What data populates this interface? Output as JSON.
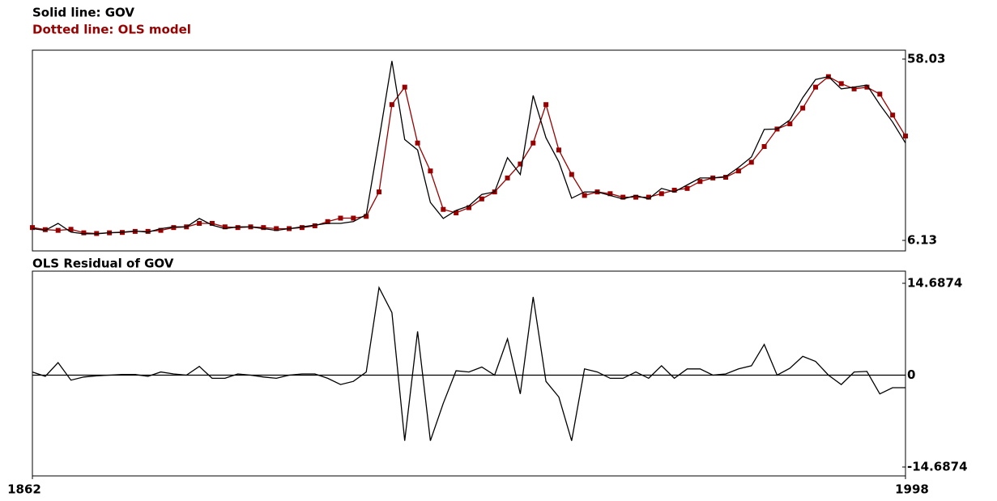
{
  "chart_data": [
    {
      "type": "line",
      "x": [
        1862,
        1864,
        1866,
        1868,
        1870,
        1872,
        1874,
        1876,
        1878,
        1880,
        1882,
        1884,
        1886,
        1888,
        1890,
        1892,
        1894,
        1896,
        1898,
        1900,
        1902,
        1904,
        1906,
        1908,
        1910,
        1912,
        1914,
        1916,
        1918,
        1920,
        1922,
        1924,
        1926,
        1928,
        1930,
        1932,
        1934,
        1936,
        1938,
        1940,
        1942,
        1944,
        1946,
        1948,
        1950,
        1952,
        1954,
        1956,
        1958,
        1960,
        1962,
        1964,
        1966,
        1968,
        1970,
        1972,
        1974,
        1976,
        1978,
        1980,
        1982,
        1984,
        1986,
        1988,
        1990,
        1992,
        1994,
        1996,
        1998
      ],
      "xlim": [
        1862,
        1998
      ],
      "ylim": [
        6.13,
        58.03
      ],
      "yticks": [
        58.03,
        6.13
      ],
      "series": [
        {
          "name": "Solid line: GOV",
          "color": "#000000",
          "values": [
            9.5,
            9.0,
            11.0,
            8.5,
            8.0,
            8.0,
            8.3,
            8.5,
            8.8,
            8.5,
            9.5,
            10.0,
            10.0,
            12.4,
            10.5,
            9.5,
            10.0,
            10.0,
            9.5,
            9.0,
            9.5,
            10.0,
            10.5,
            11.0,
            11.0,
            11.5,
            13.5,
            35.0,
            57.5,
            35.0,
            32.0,
            17.0,
            12.4,
            14.7,
            16.0,
            19.3,
            20.0,
            29.8,
            25.0,
            47.6,
            35.5,
            28.6,
            18.2,
            20.0,
            20.0,
            19.0,
            18.0,
            19.0,
            18.0,
            21.0,
            20.0,
            22.0,
            24.0,
            24.0,
            24.4,
            27.0,
            30.0,
            37.9,
            38.0,
            40.6,
            47.0,
            52.2,
            53.0,
            49.5,
            50.0,
            50.6,
            45.0,
            40.0,
            34.0
          ]
        },
        {
          "name": "Dotted line: OLS model",
          "color": "#990000",
          "marker": "square",
          "values": [
            9.8,
            9.2,
            9.0,
            9.3,
            8.3,
            8.1,
            8.3,
            8.4,
            8.7,
            8.7,
            9.0,
            9.8,
            10.0,
            11.0,
            11.0,
            10.0,
            9.8,
            10.0,
            9.8,
            9.5,
            9.5,
            9.8,
            10.3,
            11.5,
            12.5,
            12.5,
            13.0,
            20.0,
            45.0,
            50.0,
            34.0,
            26.0,
            15.0,
            14.0,
            15.5,
            18.0,
            20.0,
            24.0,
            28.0,
            34.0,
            45.0,
            32.0,
            25.0,
            19.0,
            20.0,
            19.5,
            18.5,
            18.5,
            18.5,
            19.5,
            20.5,
            21.0,
            23.0,
            24.0,
            24.2,
            26.0,
            28.5,
            33.0,
            38.0,
            39.5,
            44.0,
            50.0,
            53.0,
            51.0,
            49.5,
            50.0,
            48.0,
            42.0,
            36.0
          ]
        }
      ]
    },
    {
      "type": "line",
      "title": "OLS Residual of GOV",
      "x": [
        1862,
        1864,
        1866,
        1868,
        1870,
        1872,
        1874,
        1876,
        1878,
        1880,
        1882,
        1884,
        1886,
        1888,
        1890,
        1892,
        1894,
        1896,
        1898,
        1900,
        1902,
        1904,
        1906,
        1908,
        1910,
        1912,
        1914,
        1916,
        1918,
        1920,
        1922,
        1924,
        1926,
        1928,
        1930,
        1932,
        1934,
        1936,
        1938,
        1940,
        1942,
        1944,
        1946,
        1948,
        1950,
        1952,
        1954,
        1956,
        1958,
        1960,
        1962,
        1964,
        1966,
        1968,
        1970,
        1972,
        1974,
        1976,
        1978,
        1980,
        1982,
        1984,
        1986,
        1988,
        1990,
        1992,
        1994,
        1996,
        1998
      ],
      "xlim": [
        1862,
        1998
      ],
      "xticks": [
        1862,
        1998
      ],
      "ylim": [
        -14.6874,
        14.6874
      ],
      "yticks": [
        14.6874,
        0,
        -14.6874
      ],
      "zero_line": true,
      "series": [
        {
          "color": "#000000",
          "values": [
            0.5,
            -0.2,
            2.0,
            -0.8,
            -0.3,
            -0.1,
            0,
            0.1,
            0.1,
            -0.2,
            0.5,
            0.2,
            0,
            1.4,
            -0.5,
            -0.5,
            0.2,
            0,
            -0.3,
            -0.5,
            0,
            0.2,
            0.2,
            -0.5,
            -1.5,
            -1.0,
            0.5,
            14.0,
            10.0,
            -10.5,
            7.0,
            -10.5,
            -4.5,
            0.7,
            0.5,
            1.3,
            0,
            5.8,
            -3.0,
            12.5,
            -1.0,
            -3.5,
            -10.5,
            1.0,
            0.5,
            -0.5,
            -0.5,
            0.5,
            -0.5,
            1.5,
            -0.5,
            1.0,
            1.0,
            0,
            0.2,
            1.0,
            1.5,
            4.9,
            0,
            1.1,
            3.0,
            2.2,
            0,
            -1.5,
            0.5,
            0.6,
            -3.0,
            -2.0,
            -2.0
          ]
        }
      ]
    }
  ]
}
